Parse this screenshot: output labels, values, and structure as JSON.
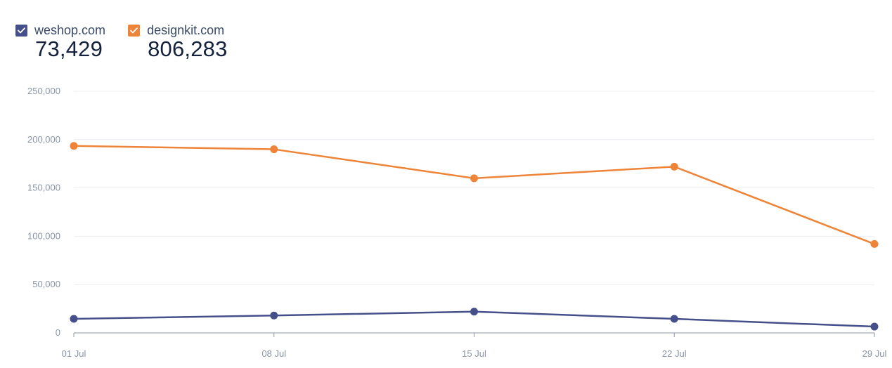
{
  "legend": {
    "items": [
      {
        "label": "weshop.com",
        "total": "73,429",
        "color": "#45508b",
        "checked": true
      },
      {
        "label": "designkit.com",
        "total": "806,283",
        "color": "#ee8437",
        "checked": true
      }
    ]
  },
  "chart_data": {
    "type": "line",
    "x": [
      "01 Jul",
      "08 Jul",
      "15 Jul",
      "22 Jul",
      "29 Jul"
    ],
    "series": [
      {
        "name": "weshop.com",
        "color": "#45508b",
        "values": [
          14500,
          18000,
          22000,
          14500,
          6500
        ]
      },
      {
        "name": "designkit.com",
        "color": "#ee8437",
        "values": [
          193500,
          190000,
          160000,
          172000,
          92000
        ]
      }
    ],
    "ylim": [
      0,
      250000
    ],
    "yticks": [
      "0",
      "50,000",
      "100,000",
      "150,000",
      "200,000",
      "250,000"
    ],
    "ytick_values": [
      0,
      50000,
      100000,
      150000,
      200000,
      250000
    ],
    "grid": true,
    "legend_position": "top-left",
    "title": "",
    "xlabel": "",
    "ylabel": ""
  }
}
